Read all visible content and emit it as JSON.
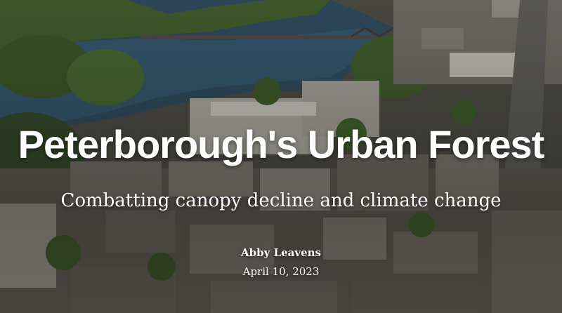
{
  "hero": {
    "background_image": "aerial-city-river-photo",
    "title": "Peterborough's Urban Forest",
    "subtitle": "Combatting canopy decline and climate change",
    "author": "Abby Leavens",
    "date": "April 10, 2023"
  },
  "colors": {
    "text": "#ffffff",
    "river": "#2e4a5e",
    "foliage": "#3d5a2a",
    "rooftops": "#8a8580"
  }
}
